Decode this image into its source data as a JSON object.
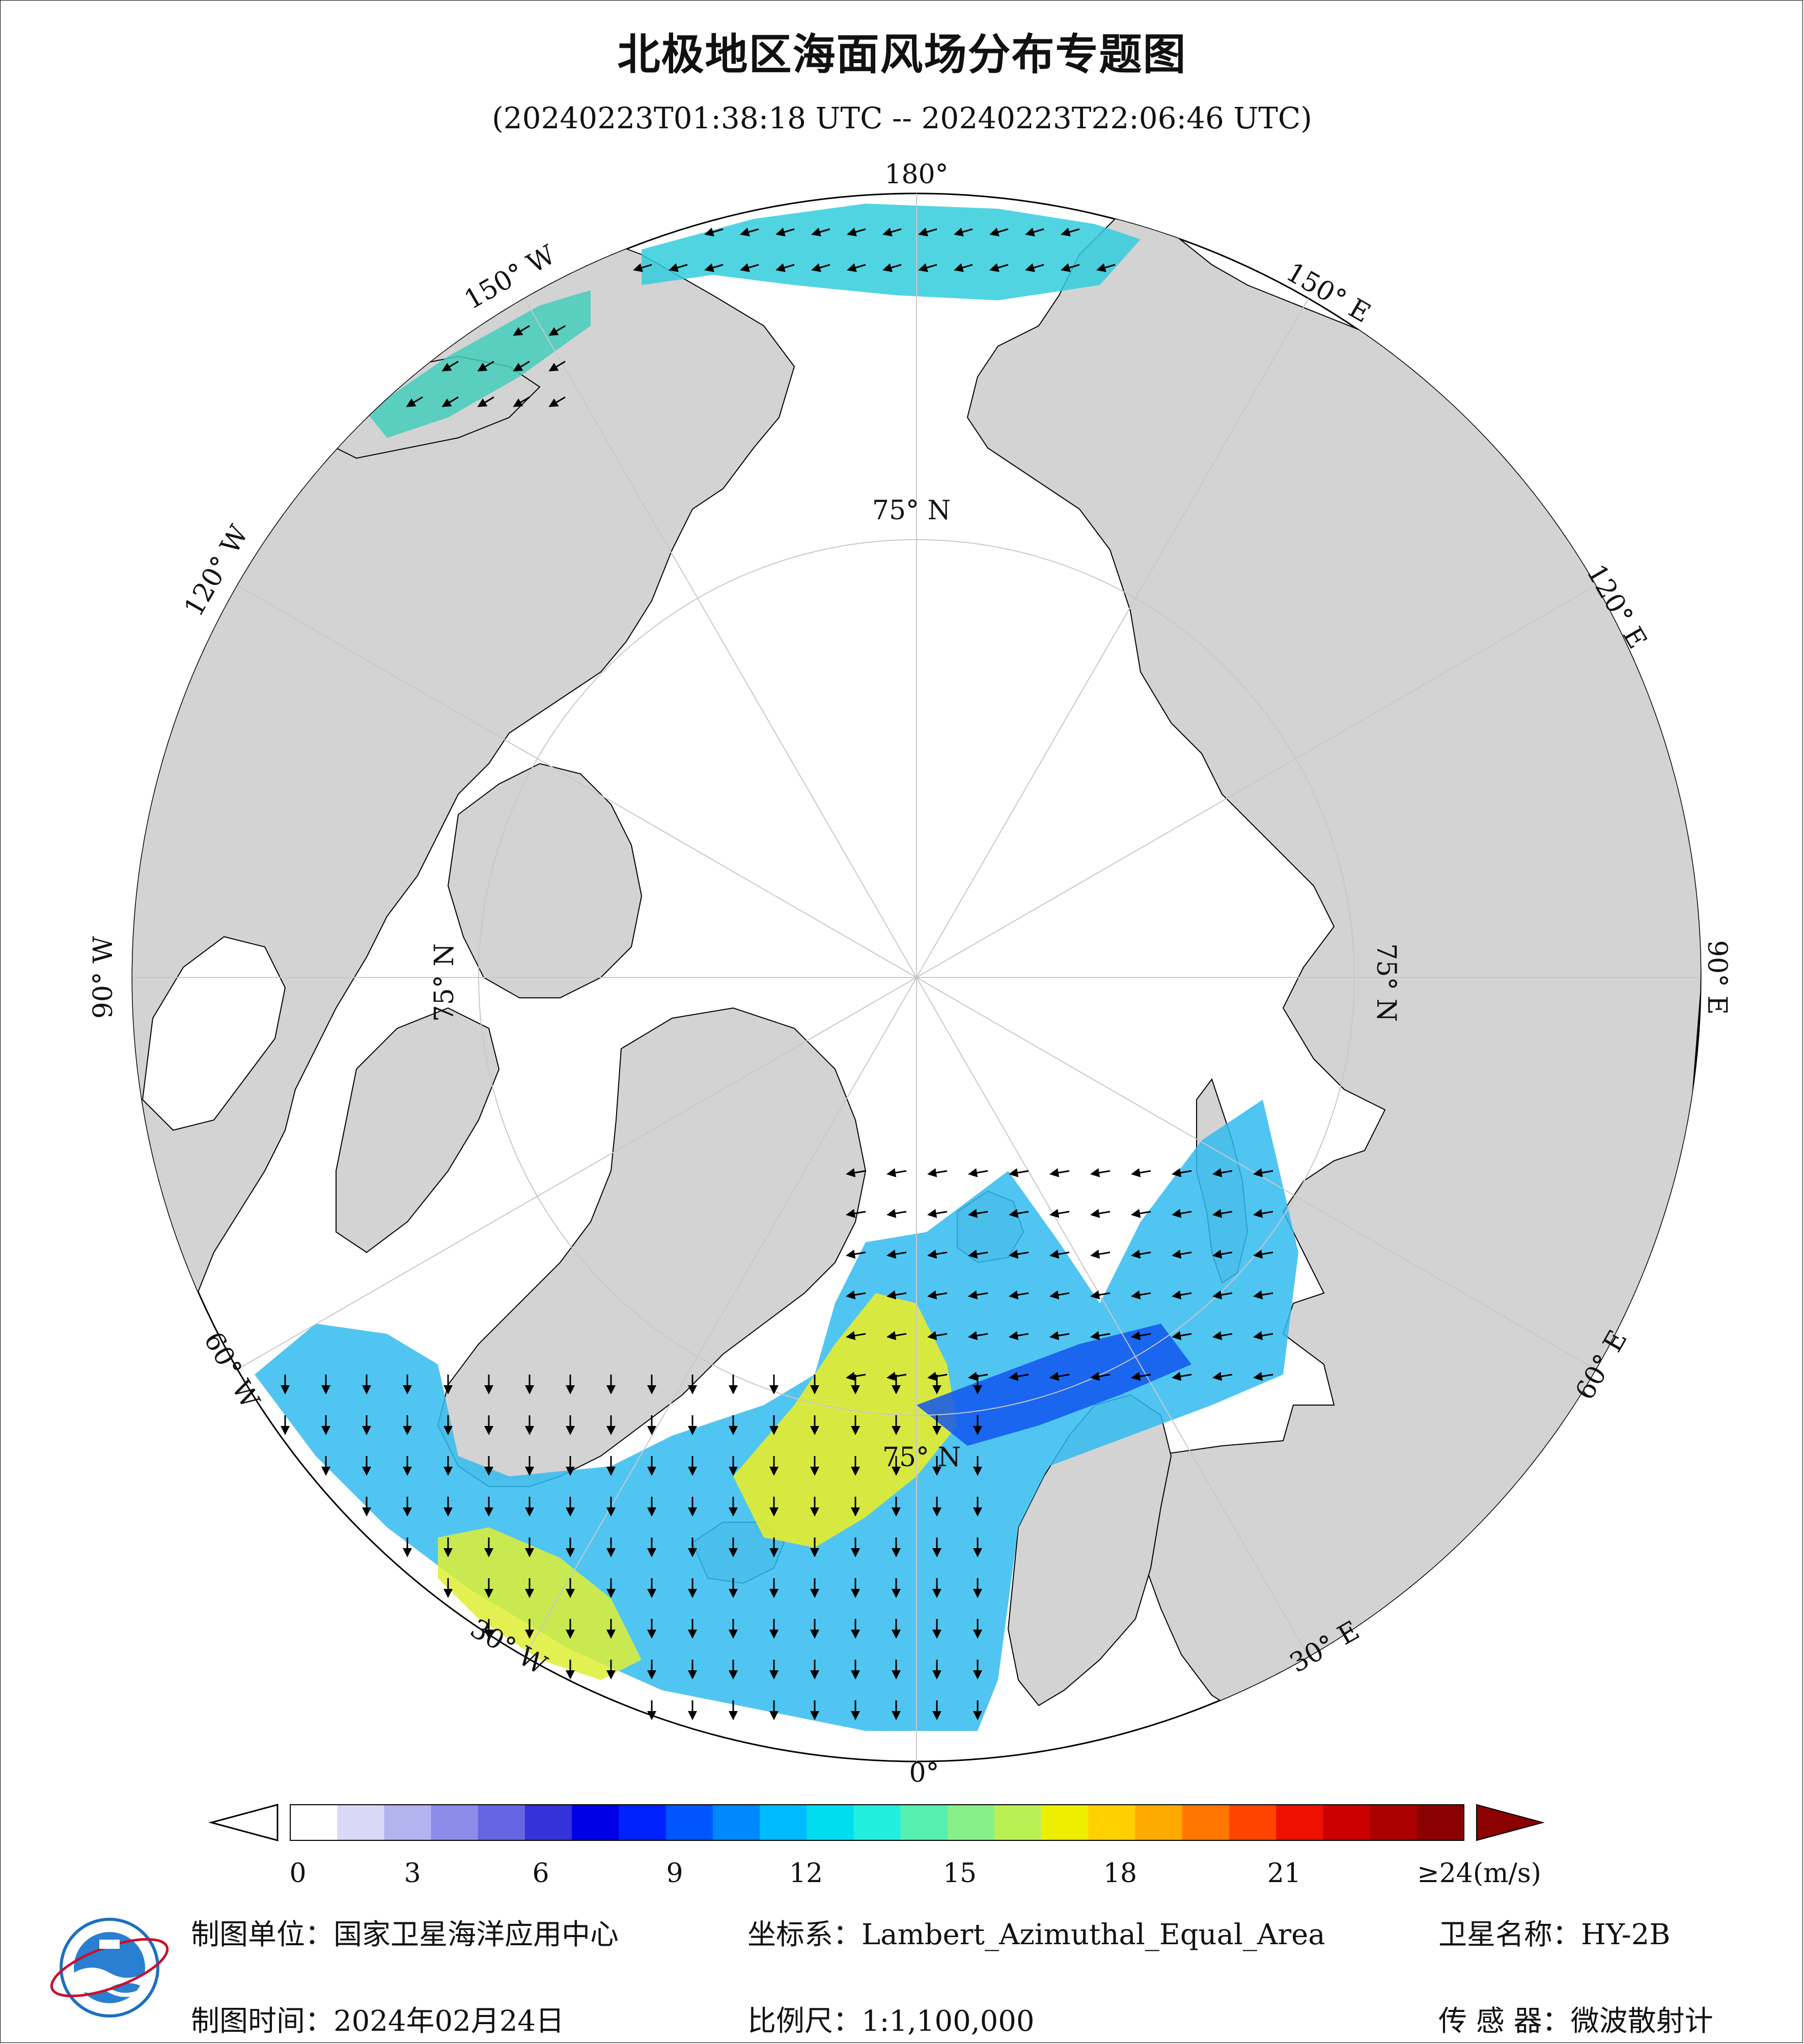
{
  "title": "北极地区海面风场分布专题图",
  "subtitle": "(20240223T01:38:18 UTC -- 20240223T22:06:46 UTC)",
  "graticule": {
    "lon_labels": [
      "180°",
      "150° E",
      "120° E",
      "90° E",
      "60° E",
      "30° E",
      "0°",
      "30° W",
      "60° W",
      "90° W",
      "120° W",
      "150° W"
    ],
    "lat_label": "75° N",
    "lat_label_left": "75° N"
  },
  "colorbar": {
    "ticks": [
      "0",
      "3",
      "6",
      "9",
      "12",
      "15",
      "18",
      "21",
      "≥24(m/s)"
    ],
    "colors": [
      "#ffffff",
      "#d9d9f7",
      "#b3b3f0",
      "#8c8ce9",
      "#6666e2",
      "#3333d9",
      "#0000e6",
      "#0022ff",
      "#0055ff",
      "#0088ff",
      "#00bbff",
      "#00ddee",
      "#22eedd",
      "#55f0b0",
      "#88f088",
      "#bbf055",
      "#eeee00",
      "#ffd000",
      "#ffaa00",
      "#ff7700",
      "#ff4400",
      "#ee1100",
      "#cc0000",
      "#aa0000",
      "#8b0000"
    ]
  },
  "footer": {
    "unit": "制图单位：国家卫星海洋应用中心",
    "time": "制图时间：2024年02月24日",
    "crs": "坐标系：Lambert_Azimuthal_Equal_Area",
    "scale": "比例尺：1:1,100,000",
    "satellite": "卫星名称：HY-2B",
    "sensor": "传  感  器：微波散射计"
  },
  "colors": {
    "land": "#d3d3d3",
    "ocean": "#ffffff",
    "coast": "#000000",
    "grid": "#c8c8c8"
  },
  "logo": {
    "icon": "nsoas-logo-icon"
  }
}
